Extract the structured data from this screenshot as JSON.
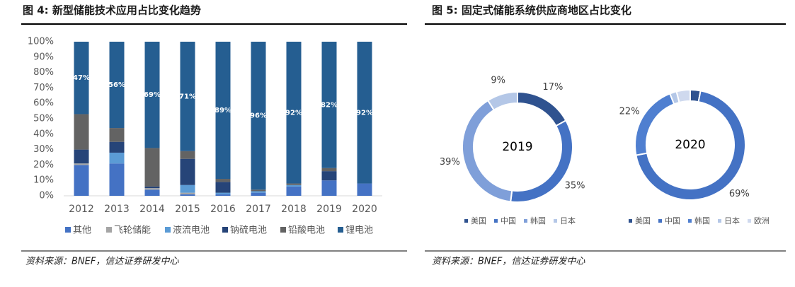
{
  "chart_data": [
    {
      "type": "bar",
      "stacked": true,
      "title": "图 4:  新型储能技术应用占比变化趋势",
      "source": "资料来源：BNEF，信达证券研发中心",
      "categories": [
        "2012",
        "2013",
        "2014",
        "2015",
        "2016",
        "2017",
        "2018",
        "2019",
        "2020"
      ],
      "series": [
        {
          "name": "其他",
          "color": "#4472c4",
          "values": [
            20,
            21,
            4,
            1,
            1,
            2,
            6,
            10,
            8
          ]
        },
        {
          "name": "飞轮储能",
          "color": "#a5a5a5",
          "values": [
            1,
            0,
            1,
            1,
            0,
            0,
            0,
            0,
            0
          ]
        },
        {
          "name": "液流电池",
          "color": "#5b9bd5",
          "values": [
            0,
            7,
            0,
            5,
            1,
            1,
            1,
            0,
            0
          ]
        },
        {
          "name": "钠硫电池",
          "color": "#264478",
          "values": [
            9,
            7,
            1,
            17,
            7,
            0,
            0,
            6,
            0
          ]
        },
        {
          "name": "铅酸电池",
          "color": "#636363",
          "values": [
            23,
            9,
            25,
            5,
            2,
            1,
            1,
            2,
            0
          ]
        },
        {
          "name": "锂电池",
          "color": "#255e91",
          "values": [
            47,
            56,
            69,
            71,
            89,
            96,
            92,
            82,
            92
          ],
          "value_labels": [
            "47%",
            "56%",
            "69%",
            "71%",
            "89%",
            "96%",
            "92%",
            "82%",
            "92%"
          ]
        }
      ],
      "ylim": [
        0,
        100
      ],
      "yticks": [
        {
          "value": 0,
          "label": "0%"
        },
        {
          "value": 10,
          "label": "10%"
        },
        {
          "value": 20,
          "label": "20%"
        },
        {
          "value": 30,
          "label": "30%"
        },
        {
          "value": 40,
          "label": "40%"
        },
        {
          "value": 50,
          "label": "50%"
        },
        {
          "value": 60,
          "label": "60%"
        },
        {
          "value": 70,
          "label": "70%"
        },
        {
          "value": 80,
          "label": "80%"
        },
        {
          "value": 90,
          "label": "90%"
        },
        {
          "value": 100,
          "label": "100%"
        }
      ],
      "legend": "bottom"
    },
    {
      "type": "pie",
      "donut": true,
      "title": "图 5:  固定式储能系统供应商地区占比变化",
      "source": "资料来源：BNEF，信达证券研发中心",
      "center_label": "2019",
      "categories": [
        "美国",
        "中国",
        "韩国",
        "日本"
      ],
      "values": [
        17,
        35,
        39,
        9
      ],
      "value_labels": [
        "17%",
        "35%",
        "39%",
        "9%"
      ],
      "colors": [
        "#2f528f",
        "#4472c4",
        "#7f9fd9",
        "#b4c7e7"
      ],
      "legend": "bottom"
    },
    {
      "type": "pie",
      "donut": true,
      "center_label": "2020",
      "categories": [
        "美国",
        "中国",
        "韩国",
        "日本",
        "欧洲"
      ],
      "values": [
        3,
        69,
        22,
        2,
        4
      ],
      "value_labels": [
        null,
        "69%",
        "22%",
        null,
        null
      ],
      "colors": [
        "#2f528f",
        "#4472c4",
        "#4f7fd0",
        "#b4c7e7",
        "#cfd9ee"
      ],
      "legend": "bottom"
    }
  ]
}
